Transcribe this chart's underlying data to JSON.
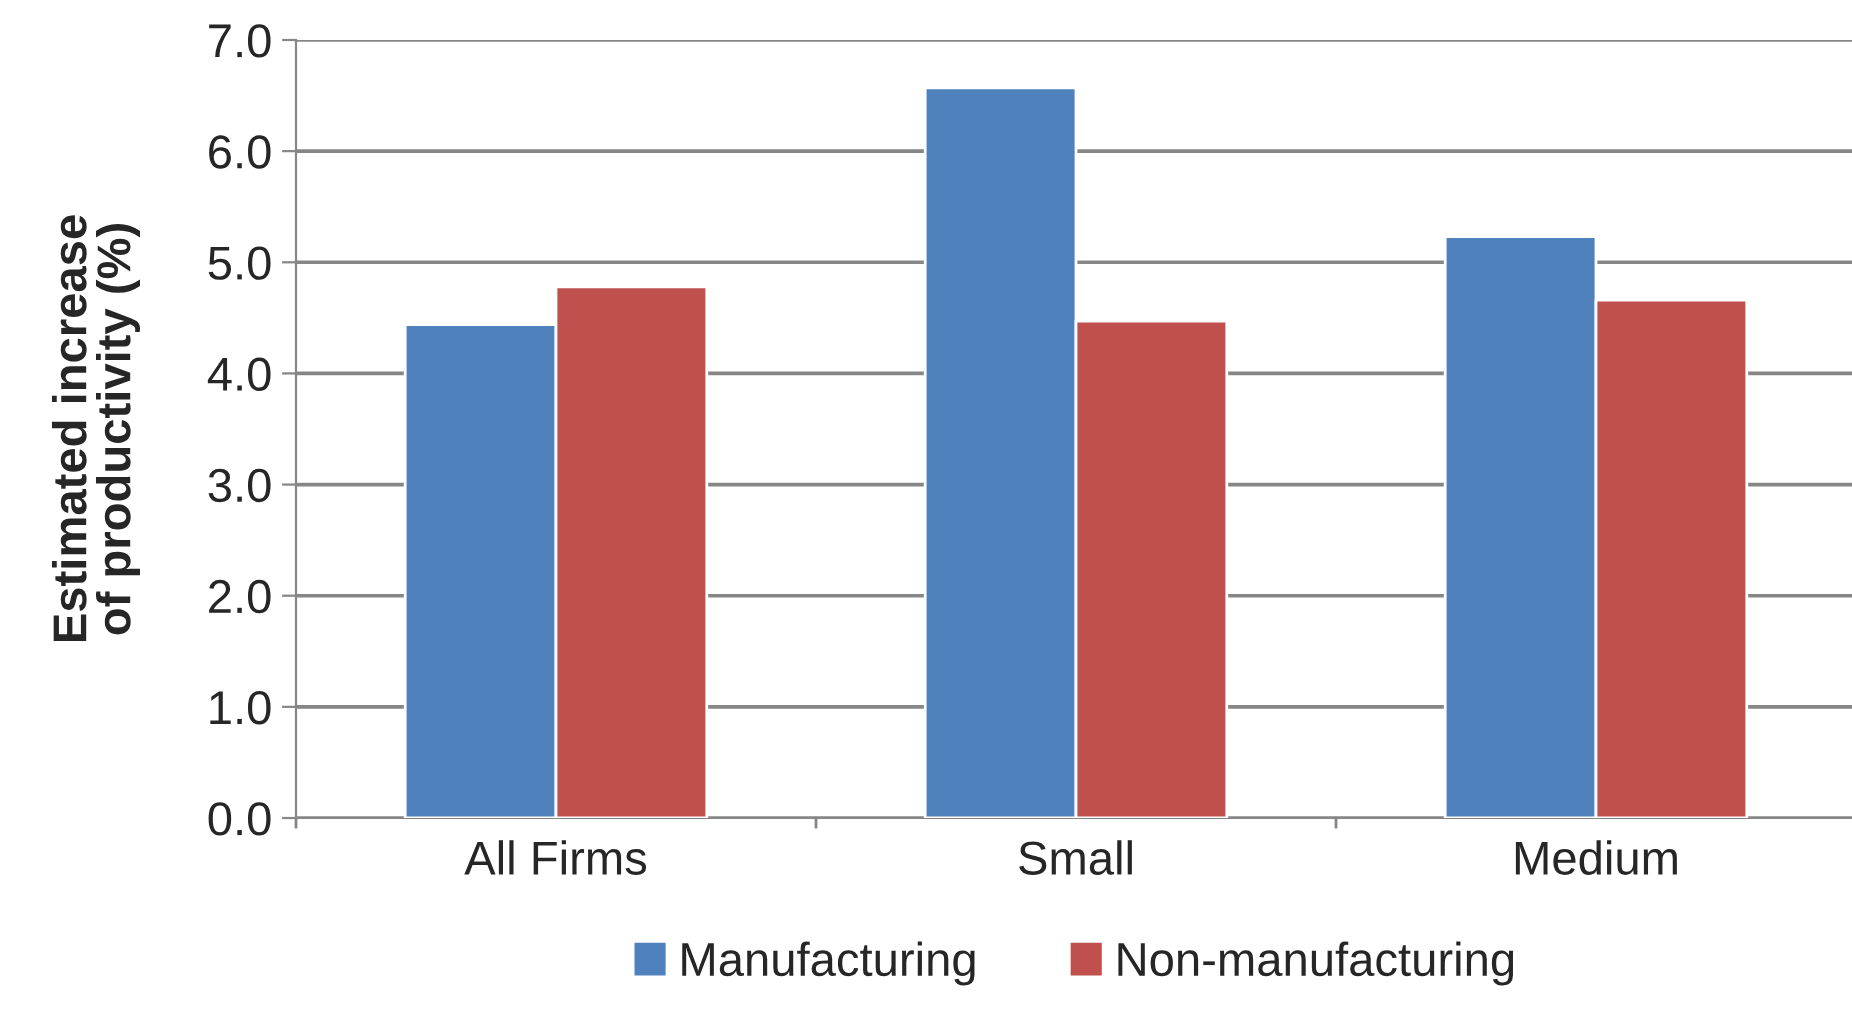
{
  "chart_data": {
    "type": "bar",
    "ylabel": "Estimated increase of productivity (%)",
    "categories": [
      "All Firms",
      "Small",
      "Medium"
    ],
    "series": [
      {
        "name": "Manufacturing",
        "color": "#4f81bd",
        "values": [
          4.44,
          6.57,
          5.23
        ]
      },
      {
        "name": "Non-manufacturing",
        "color": "#c0504d",
        "values": [
          4.78,
          4.47,
          4.66
        ]
      }
    ],
    "ylim": [
      0,
      7
    ],
    "yticks": [
      {
        "value": 0,
        "label": "0.0"
      },
      {
        "value": 1,
        "label": "1.0"
      },
      {
        "value": 2,
        "label": "2.0"
      },
      {
        "value": 3,
        "label": "3.0"
      },
      {
        "value": 4,
        "label": "4.0"
      },
      {
        "value": 5,
        "label": "5.0"
      },
      {
        "value": 6,
        "label": "6.0"
      },
      {
        "value": 7,
        "label": "7.0"
      }
    ],
    "grid": "y",
    "legend": "bottom"
  }
}
